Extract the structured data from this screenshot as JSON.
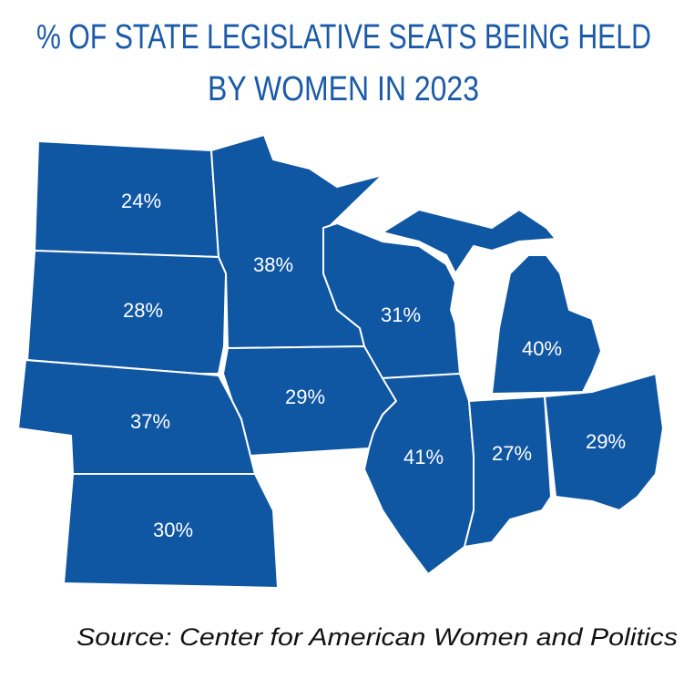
{
  "title": [
    "% OF STATE LEGISLATIVE SEATS BEING HELD",
    "BY WOMEN IN 2023"
  ],
  "regions": [
    {
      "label": "24%"
    },
    {
      "label": "28%"
    },
    {
      "label": "37%"
    },
    {
      "label": "30%"
    },
    {
      "label": "38%"
    },
    {
      "label": "29%"
    },
    {
      "label": "31%"
    },
    {
      "label": "41%"
    },
    {
      "label": "27%"
    },
    {
      "label": "29%"
    },
    {
      "label": "40%"
    }
  ],
  "source": "Source: Center for American Women and Politics"
}
